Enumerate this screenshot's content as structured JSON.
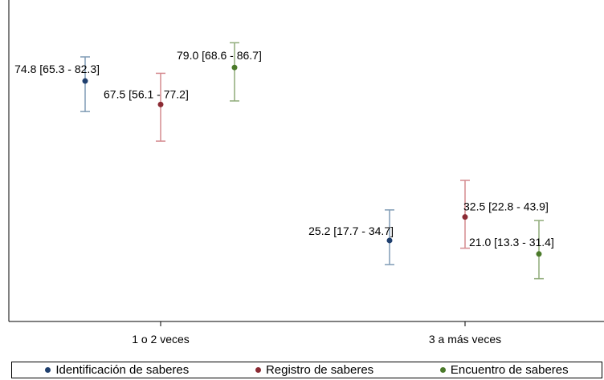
{
  "chart_data": {
    "type": "scatter",
    "subtype": "point-with-error-bars",
    "categories": [
      "1 o 2 veces",
      "3 a más veces"
    ],
    "ylim": [
      0,
      100
    ],
    "grid": false,
    "legend_position": "bottom",
    "series": [
      {
        "name": "Identificación de saberes",
        "color": "#1f3f6e",
        "bar_color": "#7f9bb5",
        "values": [
          74.8,
          25.2
        ],
        "lower": [
          65.3,
          17.7
        ],
        "upper": [
          82.3,
          34.7
        ],
        "labels": [
          "74.8 [65.3 - 82.3]",
          "25.2 [17.7 - 34.7]"
        ]
      },
      {
        "name": "Registro de saberes",
        "color": "#8b2a33",
        "bar_color": "#d48a8f",
        "values": [
          67.5,
          32.5
        ],
        "lower": [
          56.1,
          22.8
        ],
        "upper": [
          77.2,
          43.9
        ],
        "labels": [
          "67.5 [56.1 - 77.2]",
          "32.5 [22.8 - 43.9]"
        ]
      },
      {
        "name": "Encuentro de saberes",
        "color": "#4b7a2a",
        "bar_color": "#8fab79",
        "values": [
          79.0,
          21.0
        ],
        "lower": [
          68.6,
          13.3
        ],
        "upper": [
          86.7,
          31.4
        ],
        "labels": [
          "79.0 [68.6 - 86.7]",
          "21.0 [13.3 - 31.4]"
        ]
      }
    ]
  }
}
